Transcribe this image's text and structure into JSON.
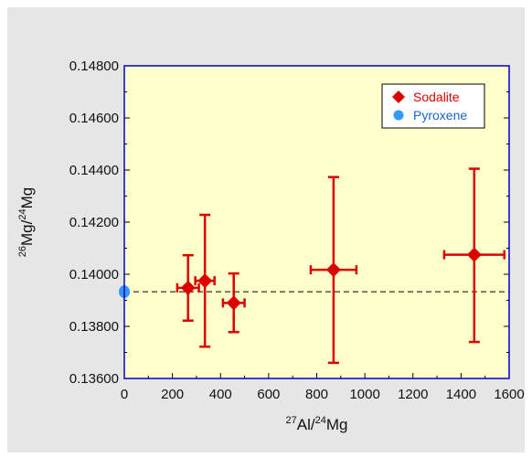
{
  "chart_data": {
    "type": "scatter",
    "xlabel": {
      "sup": "27",
      "main": "Al/",
      "sup2": "24",
      "end": "Mg"
    },
    "ylabel": {
      "sup": "26",
      "main": "Mg/",
      "sup2": "24",
      "end": "Mg"
    },
    "xlim": [
      0,
      1600
    ],
    "ylim": [
      0.136,
      0.148
    ],
    "x_ticks": [
      "0",
      "200",
      "400",
      "600",
      "800",
      "1000",
      "1200",
      "1400",
      "1600"
    ],
    "x_tick_values": [
      0,
      200,
      400,
      600,
      800,
      1000,
      1200,
      1400,
      1600
    ],
    "y_ticks": [
      "0.13600",
      "0.13800",
      "0.14000",
      "0.14200",
      "0.14400",
      "0.14600",
      "0.14800"
    ],
    "y_tick_values": [
      0.136,
      0.138,
      0.14,
      0.142,
      0.144,
      0.146,
      0.148
    ],
    "grid": false,
    "legend_position": "top-right",
    "reference_line_y": 0.13933,
    "colors": {
      "plot_bg": "#ffffcc",
      "frame": "#0000cc",
      "sodalite": "#dd0000",
      "pyroxene": "#3399ff"
    },
    "series": [
      {
        "name": "Sodalite",
        "marker": "diamond",
        "points": [
          {
            "x": 265,
            "y": 0.13948,
            "xerr": 45,
            "ylo": 0.13822,
            "yhi": 0.14073
          },
          {
            "x": 335,
            "y": 0.13975,
            "xerr": 40,
            "ylo": 0.13722,
            "yhi": 0.14228
          },
          {
            "x": 455,
            "y": 0.1389,
            "xerr": 45,
            "ylo": 0.13778,
            "yhi": 0.14003
          },
          {
            "x": 870,
            "y": 0.14017,
            "xerr": 95,
            "ylo": 0.1366,
            "yhi": 0.14373
          },
          {
            "x": 1455,
            "y": 0.14075,
            "xerr": 125,
            "ylo": 0.1374,
            "yhi": 0.14405
          }
        ]
      },
      {
        "name": "Pyroxene",
        "marker": "circle",
        "points": [
          {
            "x": 0,
            "y": 0.13933
          }
        ]
      }
    ]
  }
}
